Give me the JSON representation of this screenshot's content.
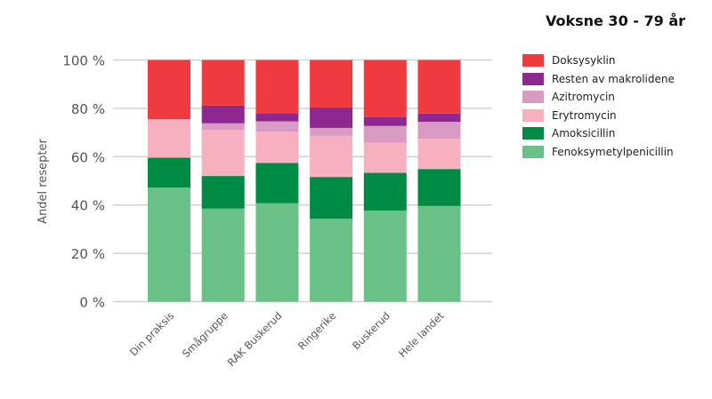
{
  "chart_data": {
    "type": "bar",
    "stacked": true,
    "title": "Voksne 30 - 79 år",
    "xlabel": "",
    "ylabel": "Andel resepter",
    "ylim": [
      0,
      100
    ],
    "yticks": [
      "0 %",
      "20 %",
      "40 %",
      "60 %",
      "80 %",
      "100 %"
    ],
    "categories": [
      "Din praksis",
      "Smågruppe",
      "RAK Buskerud",
      "Ringerike",
      "Buskerud",
      "Hele landet"
    ],
    "legend_position": "right",
    "series": [
      {
        "name": "Fenoksymetylpenicillin",
        "color": "#69c187",
        "values": [
          47.2,
          38.5,
          40.8,
          34.3,
          37.7,
          39.6
        ]
      },
      {
        "name": "Amoksicillin",
        "color": "#008b45",
        "values": [
          12.4,
          13.5,
          16.6,
          17.3,
          15.6,
          15.3
        ]
      },
      {
        "name": "Erytromycin",
        "color": "#f7b0bf",
        "values": [
          15.9,
          19.0,
          12.9,
          17.0,
          12.5,
          12.5
        ]
      },
      {
        "name": "Azitromycin",
        "color": "#d99ac4",
        "values": [
          0,
          2.8,
          4.3,
          3.3,
          6.9,
          7.0
        ]
      },
      {
        "name": "Resten av makrolidene",
        "color": "#8e2790",
        "values": [
          0,
          7.3,
          3.3,
          8.4,
          3.6,
          3.4
        ]
      },
      {
        "name": "Doksysyklin",
        "color": "#ef3b3f",
        "values": [
          24.5,
          18.9,
          22.1,
          19.7,
          23.7,
          22.2
        ]
      }
    ]
  }
}
